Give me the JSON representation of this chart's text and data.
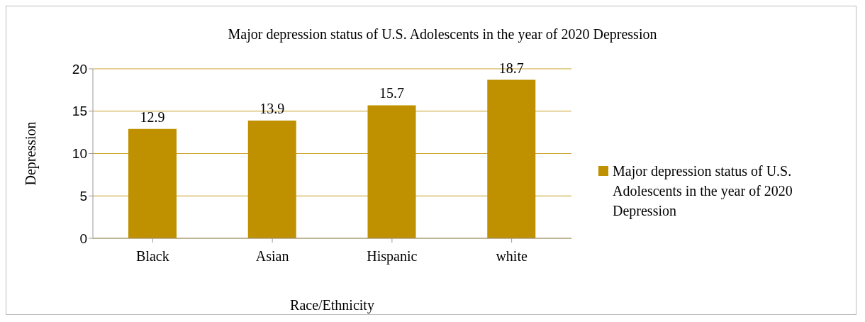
{
  "chart_data": {
    "type": "bar",
    "title": "Major depression status of U.S. Adolescents in the year of 2020 Depression",
    "xlabel": "Race/Ethnicity",
    "ylabel": "Depression",
    "categories": [
      "Black",
      "Asian",
      "Hispanic",
      "white"
    ],
    "series": [
      {
        "name": "Major depression status of U.S. Adolescents in the year of 2020 Depression",
        "color": "#bf9000",
        "values": [
          12.9,
          13.9,
          15.7,
          18.7
        ]
      }
    ],
    "ylim": [
      0,
      20
    ],
    "yticks": [
      0,
      5,
      10,
      15,
      20
    ],
    "grid": "y",
    "legend": "right",
    "data_labels": true
  }
}
